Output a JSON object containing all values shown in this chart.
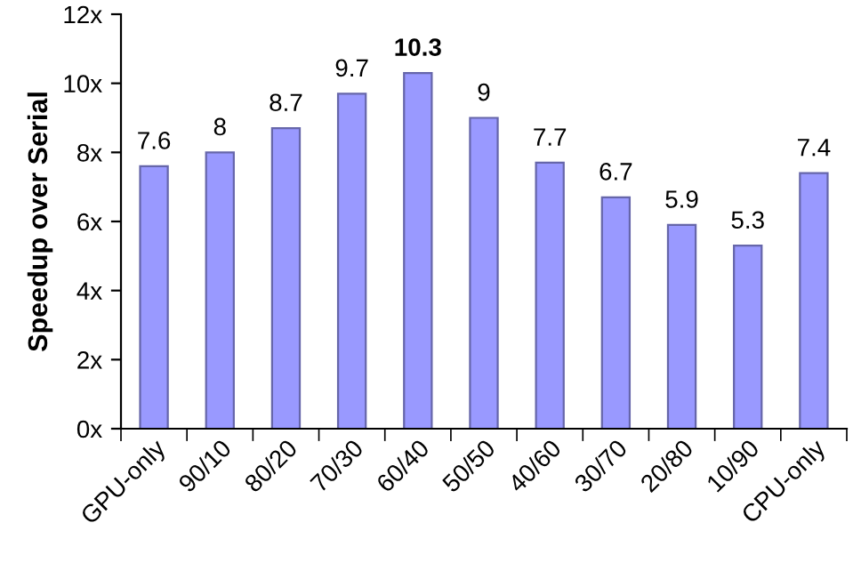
{
  "chart_data": {
    "type": "bar",
    "ylabel": "Speedup over Serial",
    "categories": [
      "GPU-only",
      "90/10",
      "80/20",
      "70/30",
      "60/40",
      "50/50",
      "40/60",
      "30/70",
      "20/80",
      "10/90",
      "CPU-only"
    ],
    "values": [
      7.6,
      8,
      8.7,
      9.7,
      10.3,
      9,
      7.7,
      6.7,
      5.9,
      5.3,
      7.4
    ],
    "color": "#9999ff",
    "data_labels": true,
    "ylim": [
      0,
      12
    ],
    "yticks": [
      {
        "value": 0,
        "label": "0x"
      },
      {
        "value": 2,
        "label": "2x"
      },
      {
        "value": 4,
        "label": "4x"
      },
      {
        "value": 6,
        "label": "6x"
      },
      {
        "value": 8,
        "label": "8x"
      },
      {
        "value": 10,
        "label": "10x"
      },
      {
        "value": 12,
        "label": "12x"
      }
    ],
    "grid": false
  }
}
